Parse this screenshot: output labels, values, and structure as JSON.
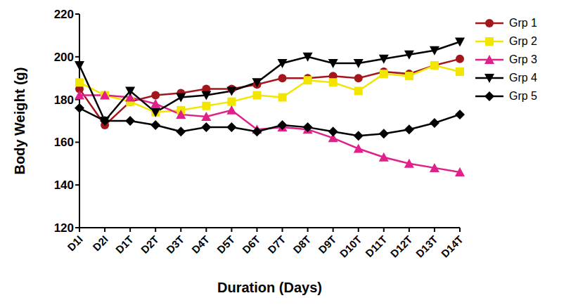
{
  "chart_data": {
    "type": "line",
    "x_label": "Duration (Days)",
    "y_label": "Body Weight (g)",
    "categories": [
      "D1I",
      "D2I",
      "D1T",
      "D2T",
      "D3T",
      "D4T",
      "D5T",
      "D6T",
      "D7T",
      "D8T",
      "D9T",
      "D10T",
      "D11T",
      "D12T",
      "D13T",
      "D14T"
    ],
    "series": [
      {
        "name": "Grp 1",
        "color": "#a3171c",
        "marker": "circle",
        "values": [
          185,
          168,
          179,
          182,
          183,
          185,
          185,
          187,
          190,
          190,
          191,
          190,
          193,
          192,
          196,
          199
        ]
      },
      {
        "name": "Grp 2",
        "color": "#f2e600",
        "marker": "square",
        "values": [
          188,
          182,
          179,
          174,
          175,
          177,
          179,
          182,
          181,
          189,
          188,
          184,
          192,
          191,
          196,
          193
        ]
      },
      {
        "name": "Grp 3",
        "color": "#e0218a",
        "marker": "triangle",
        "values": [
          182,
          182,
          181,
          178,
          173,
          172,
          175,
          166,
          167,
          166,
          162,
          157,
          153,
          150,
          148,
          146
        ]
      },
      {
        "name": "Grp 4",
        "color": "#000000",
        "marker": "triangle-down",
        "values": [
          196,
          170,
          184,
          174,
          181,
          182,
          184,
          188,
          197,
          200,
          197,
          197,
          199,
          201,
          203,
          207
        ]
      },
      {
        "name": "Grp 5",
        "color": "#000000",
        "marker": "diamond",
        "values": [
          176,
          170,
          170,
          168,
          165,
          167,
          167,
          165,
          168,
          167,
          165,
          163,
          164,
          166,
          169,
          173
        ]
      }
    ],
    "ylim": [
      120,
      220
    ],
    "yticks": [
      120,
      140,
      160,
      180,
      200,
      220
    ],
    "grid": false,
    "legend": "right"
  }
}
